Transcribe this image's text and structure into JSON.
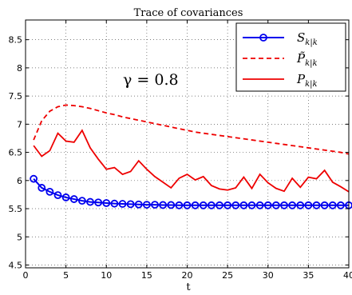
{
  "chart_data": {
    "type": "line",
    "title": "Trace of covariances",
    "xlabel": "t",
    "ylabel": "",
    "xlim": [
      0,
      40
    ],
    "ylim": [
      4.45,
      8.85
    ],
    "xticks": [
      0,
      5,
      10,
      15,
      20,
      25,
      30,
      35,
      40
    ],
    "yticks": [
      4.5,
      5,
      5.5,
      6,
      6.5,
      7,
      7.5,
      8,
      8.5
    ],
    "xtick_labels": [
      "0",
      "5",
      "10",
      "15",
      "20",
      "25",
      "30",
      "35",
      "40"
    ],
    "ytick_labels": [
      "4.5",
      "5",
      "5.5",
      "6",
      "6.5",
      "7",
      "7.5",
      "8",
      "8.5"
    ],
    "grid": true,
    "legend_position": "top-right",
    "annotation": "γ = 0.8",
    "x": [
      1,
      2,
      3,
      4,
      5,
      6,
      7,
      8,
      9,
      10,
      11,
      12,
      13,
      14,
      15,
      16,
      17,
      18,
      19,
      20,
      21,
      22,
      23,
      24,
      25,
      26,
      27,
      28,
      29,
      30,
      31,
      32,
      33,
      34,
      35,
      36,
      37,
      38,
      39,
      40
    ],
    "series": [
      {
        "name": "S_{k|k}",
        "label": "S",
        "subscript": "k|k",
        "color": "#0000ee",
        "style": "solid",
        "marker": "circle",
        "values": [
          6.03,
          5.87,
          5.8,
          5.74,
          5.7,
          5.67,
          5.64,
          5.62,
          5.61,
          5.6,
          5.59,
          5.585,
          5.58,
          5.575,
          5.57,
          5.57,
          5.565,
          5.565,
          5.56,
          5.56,
          5.56,
          5.56,
          5.56,
          5.56,
          5.56,
          5.56,
          5.56,
          5.56,
          5.56,
          5.56,
          5.56,
          5.56,
          5.56,
          5.56,
          5.56,
          5.56,
          5.56,
          5.56,
          5.56,
          5.56
        ]
      },
      {
        "name": "P̃_{k|k}",
        "label": "P̃",
        "subscript": "k|k",
        "color": "#ee0000",
        "style": "dashed",
        "marker": "none",
        "values": [
          6.72,
          7.06,
          7.23,
          7.31,
          7.34,
          7.33,
          7.31,
          7.28,
          7.24,
          7.2,
          7.17,
          7.13,
          7.1,
          7.07,
          7.04,
          7.01,
          6.98,
          6.95,
          6.92,
          6.89,
          6.86,
          6.84,
          6.82,
          6.8,
          6.78,
          6.76,
          6.74,
          6.72,
          6.7,
          6.68,
          6.66,
          6.64,
          6.62,
          6.6,
          6.58,
          6.56,
          6.54,
          6.52,
          6.5,
          6.47
        ]
      },
      {
        "name": "P_{k|k}",
        "label": "P",
        "subscript": "k|k",
        "color": "#ee0000",
        "style": "solid",
        "marker": "none",
        "values": [
          6.62,
          6.43,
          6.53,
          6.84,
          6.7,
          6.68,
          6.89,
          6.58,
          6.38,
          6.2,
          6.23,
          6.11,
          6.16,
          6.35,
          6.2,
          6.07,
          5.97,
          5.87,
          6.04,
          6.11,
          6.01,
          6.07,
          5.91,
          5.85,
          5.83,
          5.87,
          6.06,
          5.86,
          6.11,
          5.96,
          5.86,
          5.81,
          6.04,
          5.88,
          6.06,
          6.03,
          6.18,
          5.97,
          5.89,
          5.8
        ]
      }
    ]
  }
}
